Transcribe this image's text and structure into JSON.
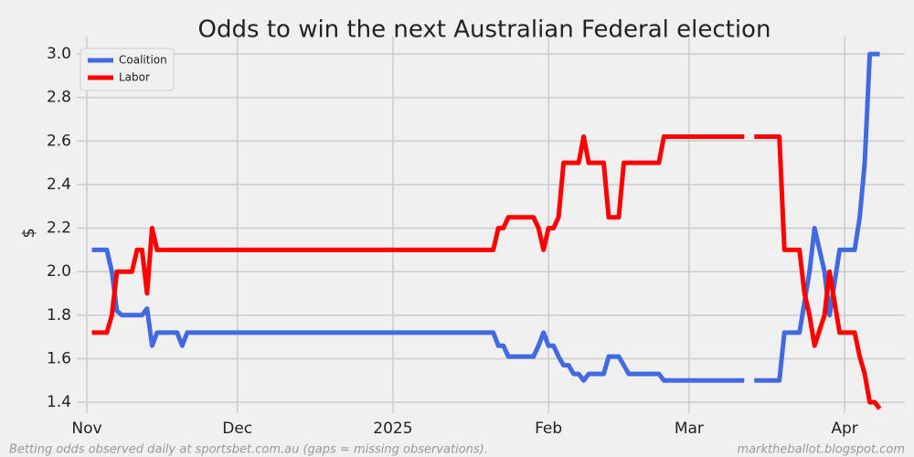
{
  "chart_data": {
    "type": "line",
    "title": "Odds to win the next Australian Federal election",
    "ylabel": "$",
    "notes": [
      "Betting odds observed daily at sportsbet.com.au (gaps = missing observations).",
      "marktheballot.blogspot.com"
    ],
    "x": [
      1,
      4,
      5,
      6,
      7,
      9,
      10,
      11,
      12,
      13,
      14,
      18,
      19,
      20,
      81,
      82,
      83,
      84,
      89,
      90,
      91,
      92,
      93,
      94,
      95,
      96,
      97,
      98,
      99,
      100,
      103,
      104,
      106,
      107,
      108,
      114,
      115,
      131,
      132,
      133,
      138,
      139,
      142,
      143,
      144,
      145,
      147,
      148,
      150,
      153,
      154,
      155,
      156,
      157,
      158
    ],
    "series": [
      {
        "name": "Coalition",
        "color": "#4169e1",
        "values": [
          2.1,
          2.1,
          2.0,
          1.82,
          1.8,
          1.8,
          1.8,
          1.8,
          1.83,
          1.66,
          1.72,
          1.72,
          1.66,
          1.72,
          1.72,
          1.66,
          1.66,
          1.61,
          1.61,
          1.66,
          1.72,
          1.66,
          1.66,
          1.61,
          1.57,
          1.57,
          1.53,
          1.53,
          1.5,
          1.53,
          1.53,
          1.61,
          1.61,
          1.57,
          1.53,
          1.53,
          1.5,
          1.5,
          null,
          1.5,
          1.5,
          1.72,
          1.72,
          1.86,
          2.0,
          2.2,
          2.0,
          1.8,
          2.1,
          2.1,
          2.25,
          2.5,
          3.0,
          3.0,
          3.0
        ]
      },
      {
        "name": "Labor",
        "color": "#ff0000",
        "values": [
          1.72,
          1.72,
          1.8,
          2.0,
          2.0,
          2.0,
          2.1,
          2.1,
          1.9,
          2.2,
          2.1,
          2.1,
          2.1,
          2.1,
          2.1,
          2.2,
          2.2,
          2.25,
          2.25,
          2.2,
          2.1,
          2.2,
          2.2,
          2.25,
          2.5,
          2.5,
          2.5,
          2.5,
          2.62,
          2.5,
          2.5,
          2.25,
          2.25,
          2.5,
          2.5,
          2.5,
          2.62,
          2.62,
          null,
          2.62,
          2.62,
          2.1,
          2.1,
          1.9,
          1.8,
          1.66,
          1.8,
          2.0,
          1.72,
          1.72,
          1.61,
          1.53,
          1.4,
          1.4,
          1.37
        ]
      }
    ],
    "xlim": [
      -2,
      163
    ],
    "xticks": [
      {
        "value": 0,
        "label": "Nov"
      },
      {
        "value": 30,
        "label": "Dec"
      },
      {
        "value": 61,
        "label": "2025"
      },
      {
        "value": 92,
        "label": "Feb"
      },
      {
        "value": 120,
        "label": "Mar"
      },
      {
        "value": 151,
        "label": "Apr"
      }
    ],
    "ylim": [
      1.35,
      3.08
    ],
    "yticks": [
      1.4,
      1.6,
      1.8,
      {
        "value": 2,
        "label": "2.0"
      },
      2.2,
      2.4,
      2.6,
      2.8,
      {
        "value": 3,
        "label": "3.0"
      }
    ],
    "grid": true,
    "legend": "upper left"
  }
}
